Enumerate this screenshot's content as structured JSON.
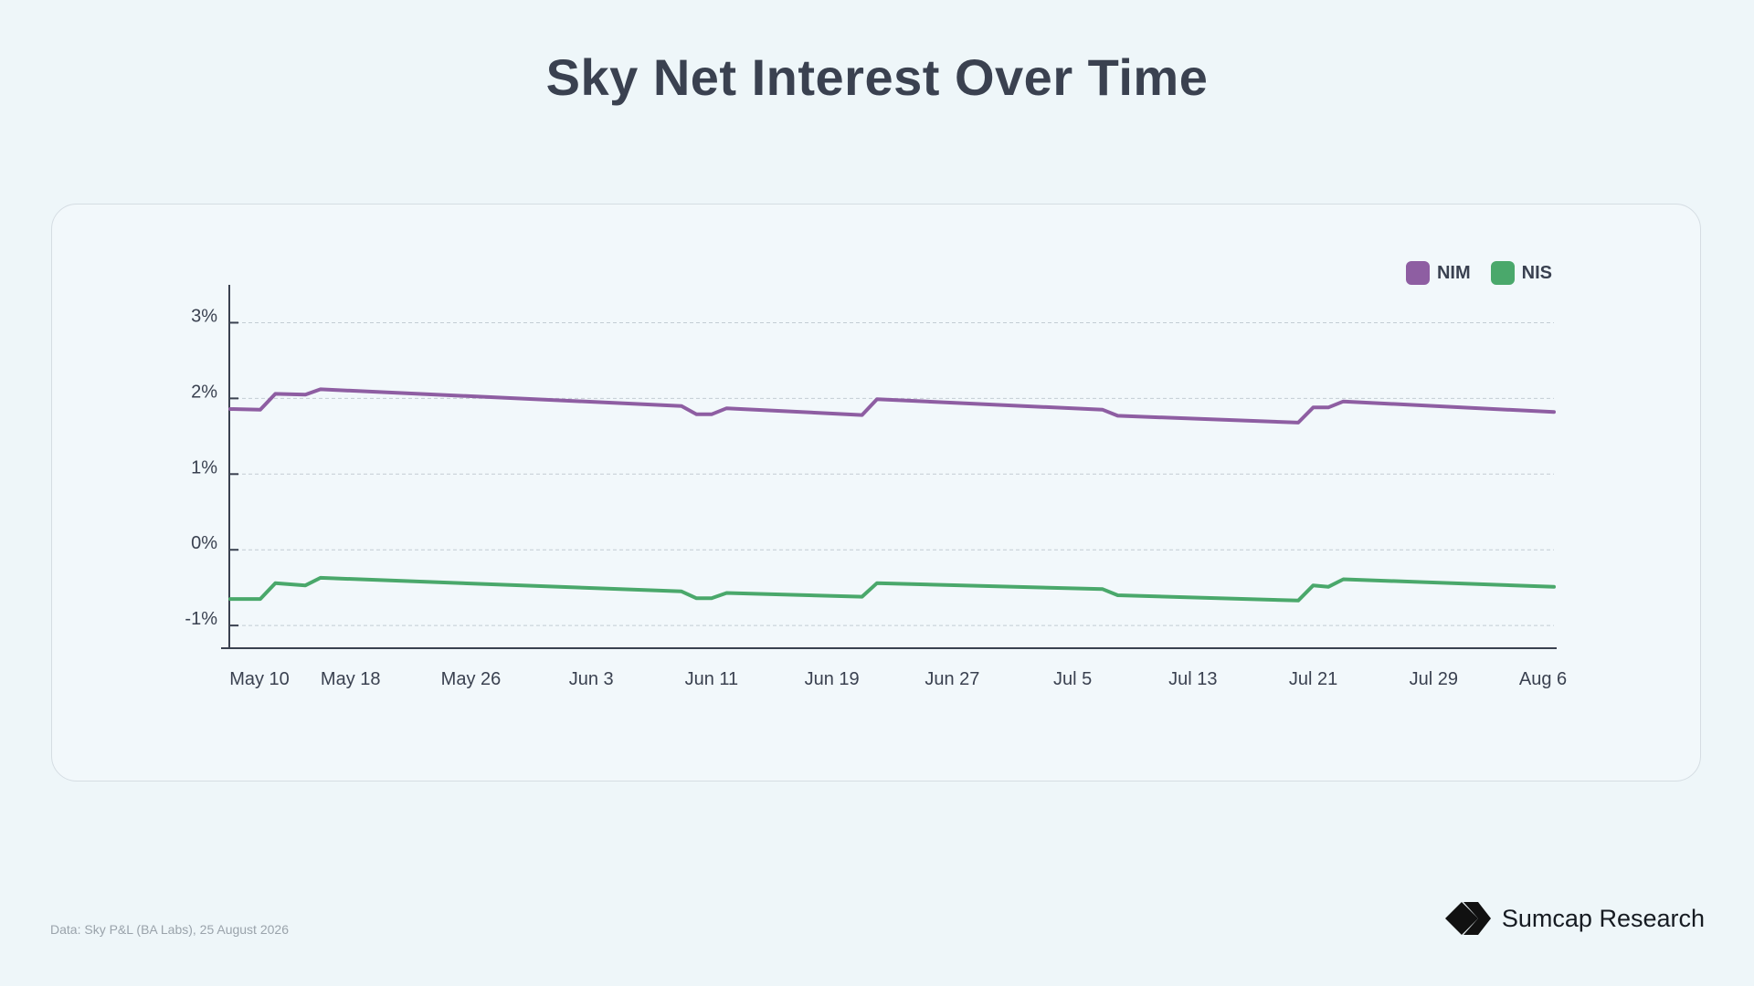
{
  "page": {
    "title": "Sky Net Interest Over Time",
    "source": "Data: Sky P&L (BA Labs), 25 August 2026",
    "brand": "Sumcap Research"
  },
  "legend": [
    {
      "name": "NIM",
      "color": "#8e5ea2"
    },
    {
      "name": "NIS",
      "color": "#4aa86b"
    }
  ],
  "chart_data": {
    "type": "line",
    "title": "Sky Net Interest Over Time",
    "xlabel": "",
    "ylabel": "",
    "ylim": [
      -1.3,
      3.5
    ],
    "xlim": [
      "2026-05-10",
      "2026-08-06"
    ],
    "y_ticks": [
      -1,
      0,
      1,
      2,
      3
    ],
    "y_tick_labels": [
      "-1%",
      "0%",
      "1%",
      "2%",
      "3%"
    ],
    "x_ticks": [
      "May 10",
      "May 18",
      "May 26",
      "Jun 3",
      "Jun 11",
      "Jun 19",
      "Jun 27",
      "Jul 5",
      "Jul 13",
      "Jul 21",
      "Jul 29",
      "Aug 6"
    ],
    "grid": true,
    "legend_position": "top-right",
    "series": [
      {
        "name": "NIM",
        "color": "#8e5ea2",
        "points": [
          [
            "2026-05-10",
            1.86
          ],
          [
            "2026-05-12",
            1.85
          ],
          [
            "2026-05-13",
            2.06
          ],
          [
            "2026-05-15",
            2.05
          ],
          [
            "2026-05-16",
            2.12
          ],
          [
            "2026-06-09",
            1.9
          ],
          [
            "2026-06-10",
            1.79
          ],
          [
            "2026-06-11",
            1.79
          ],
          [
            "2026-06-12",
            1.87
          ],
          [
            "2026-06-21",
            1.78
          ],
          [
            "2026-06-22",
            1.99
          ],
          [
            "2026-07-07",
            1.85
          ],
          [
            "2026-07-08",
            1.77
          ],
          [
            "2026-07-20",
            1.68
          ],
          [
            "2026-07-21",
            1.88
          ],
          [
            "2026-07-22",
            1.88
          ],
          [
            "2026-07-23",
            1.96
          ],
          [
            "2026-08-06",
            1.82
          ]
        ]
      },
      {
        "name": "NIS",
        "color": "#4aa86b",
        "points": [
          [
            "2026-05-10",
            -0.65
          ],
          [
            "2026-05-12",
            -0.65
          ],
          [
            "2026-05-13",
            -0.44
          ],
          [
            "2026-05-15",
            -0.47
          ],
          [
            "2026-05-16",
            -0.37
          ],
          [
            "2026-06-09",
            -0.55
          ],
          [
            "2026-06-10",
            -0.64
          ],
          [
            "2026-06-11",
            -0.64
          ],
          [
            "2026-06-12",
            -0.57
          ],
          [
            "2026-06-21",
            -0.62
          ],
          [
            "2026-06-22",
            -0.44
          ],
          [
            "2026-07-07",
            -0.52
          ],
          [
            "2026-07-08",
            -0.6
          ],
          [
            "2026-07-20",
            -0.67
          ],
          [
            "2026-07-21",
            -0.47
          ],
          [
            "2026-07-22",
            -0.49
          ],
          [
            "2026-07-23",
            -0.39
          ],
          [
            "2026-08-06",
            -0.49
          ]
        ]
      }
    ]
  }
}
